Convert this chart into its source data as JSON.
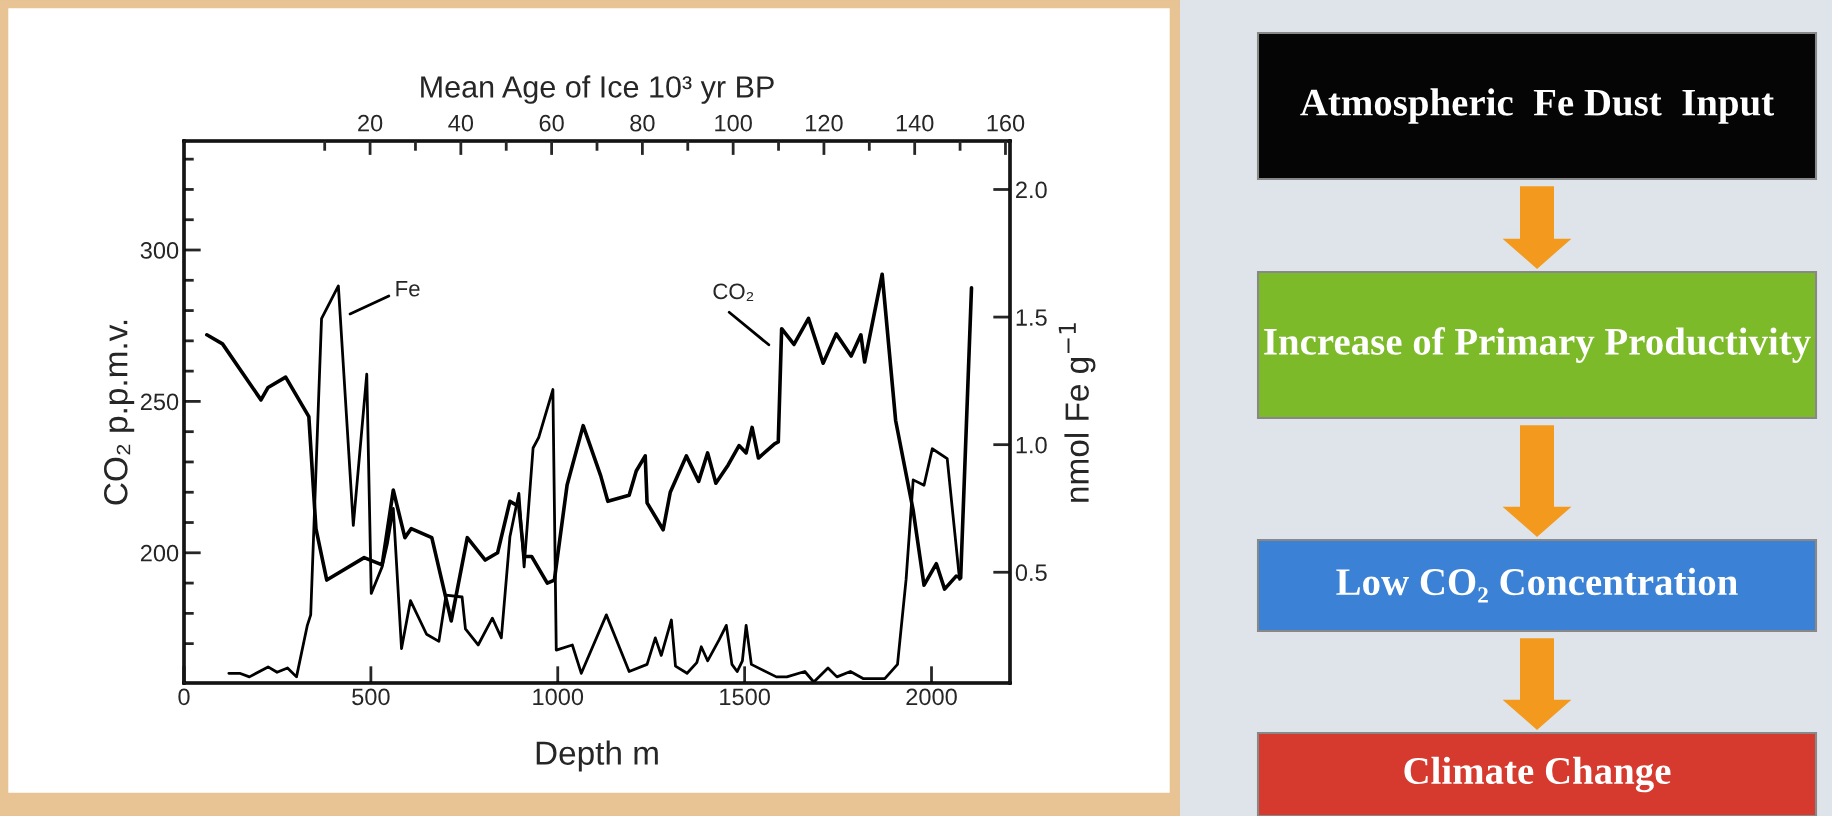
{
  "chart_data": [
    {
      "type": "line",
      "xlabel": "Depth m",
      "ylabel": "CO₂ p.p.m.v.",
      "y2label": "nmol Fe g$^{−1}$",
      "x2label": "Mean Age of Ice 10³ yr BP",
      "xlim": [
        0,
        2210
      ],
      "xticks": [
        0,
        500,
        1000,
        1500,
        2000
      ],
      "ylim": [
        157,
        336
      ],
      "yticks": [
        {
          "value": 170,
          "label": null
        },
        {
          "value": 180,
          "label": null
        },
        {
          "value": 190,
          "label": null
        },
        200,
        {
          "value": 210,
          "label": null
        },
        {
          "value": 220,
          "label": null
        },
        {
          "value": 230,
          "label": null
        },
        {
          "value": 240,
          "label": null
        },
        250,
        {
          "value": 260,
          "label": null
        },
        {
          "value": 270,
          "label": null
        },
        {
          "value": 280,
          "label": null
        },
        {
          "value": 290,
          "label": null
        },
        300,
        {
          "value": 310,
          "label": null
        },
        {
          "value": 320,
          "label": null
        },
        {
          "value": 330,
          "label": null
        }
      ],
      "y2lim": [
        0.066,
        2.19
      ],
      "y2ticks": [
        0.5,
        {
          "value": 1.0,
          "label": "1.0"
        },
        1.5,
        {
          "value": 2.0,
          "label": "2.0"
        }
      ],
      "x2lim": [
        -21,
        161
      ],
      "x2ticks": [
        {
          "value": 10,
          "label": null
        },
        20,
        {
          "value": 30,
          "label": null
        },
        40,
        {
          "value": 50,
          "label": null
        },
        60,
        {
          "value": 70,
          "label": null
        },
        80,
        {
          "value": 90,
          "label": null
        },
        100,
        {
          "value": 110,
          "label": null
        },
        120,
        {
          "value": 130,
          "label": null
        },
        140,
        {
          "value": 150,
          "label": null
        },
        160
      ],
      "series": [
        {
          "color": "#000000",
          "x": [
            61,
            103,
            206,
            225,
            272,
            334,
            353,
            382,
            482,
            530,
            560,
            591,
            608,
            663,
            715,
            758,
            806,
            839,
            872,
            896,
            910,
            930,
            972,
            991,
            1025,
            1068,
            1115,
            1134,
            1191,
            1210,
            1234,
            1239,
            1282,
            1301,
            1344,
            1377,
            1401,
            1423,
            1456,
            1485,
            1504,
            1520,
            1537,
            1580,
            1590,
            1599,
            1632,
            1671,
            1710,
            1745,
            1785,
            1811,
            1821,
            1868,
            1904,
            1951,
            1980,
            2013,
            2035,
            2066,
            2078,
            2107
          ],
          "values": [
            272,
            269,
            250.5,
            254.6,
            258,
            245,
            208,
            191,
            198.4,
            196,
            220.7,
            205,
            208,
            205,
            177.5,
            205,
            197.6,
            200,
            217,
            215.3,
            198.8,
            198.8,
            190,
            191,
            222.4,
            242,
            225.4,
            217,
            219,
            227,
            232,
            216.5,
            207.6,
            220,
            232,
            223.6,
            233,
            223,
            229,
            235.4,
            233,
            241.4,
            231.3,
            236,
            236.6,
            274,
            268.8,
            277.4,
            262.6,
            272.3,
            265,
            272,
            263,
            292,
            243.7,
            214,
            189.3,
            196.4,
            188,
            192.3,
            191.7,
            287.5
          ]
        },
        {
          "color": "#000000",
          "axis": "y2",
          "x": [
            120,
            149,
            175,
            225,
            249,
            277,
            301,
            330,
            339,
            368,
            413,
            453,
            489,
            501,
            530,
            544,
            560,
            582,
            606,
            649,
            682,
            701,
            744,
            753,
            787,
            825,
            849,
            872,
            896,
            910,
            934,
            949,
            987,
            996,
            1039,
            1063,
            1130,
            1191,
            1239,
            1261,
            1277,
            1304,
            1315,
            1346,
            1372,
            1384,
            1401,
            1432,
            1451,
            1466,
            1480,
            1494,
            1504,
            1518,
            1585,
            1613,
            1661,
            1685,
            1723,
            1747,
            1783,
            1818,
            1875,
            1909,
            1932,
            1951,
            1980,
            2002,
            2042,
            2075
          ],
          "values": [
            0.104,
            0.104,
            0.09,
            0.129,
            0.108,
            0.125,
            0.09,
            0.292,
            0.333,
            1.494,
            1.622,
            0.684,
            1.276,
            0.417,
            0.521,
            0.611,
            0.75,
            0.201,
            0.389,
            0.257,
            0.229,
            0.41,
            0.403,
            0.278,
            0.215,
            0.32,
            0.243,
            0.639,
            0.809,
            0.521,
            0.987,
            1.028,
            1.216,
            0.195,
            0.215,
            0.104,
            0.333,
            0.111,
            0.139,
            0.243,
            0.174,
            0.313,
            0.132,
            0.104,
            0.146,
            0.208,
            0.153,
            0.236,
            0.292,
            0.139,
            0.111,
            0.153,
            0.292,
            0.139,
            0.09,
            0.09,
            0.111,
            0.07,
            0.125,
            0.09,
            0.111,
            0.083,
            0.083,
            0.139,
            0.472,
            0.862,
            0.841,
            0.984,
            0.945,
            0.472
          ]
        }
      ],
      "annotations": [
        "Fe",
        "CO₂"
      ]
    },
    {
      "type": "other",
      "annotations": [
        "Atmospheric  Fe Dust  Input",
        "Increase of Primary Productivity",
        "Low CO₂ Concentration",
        "Climate Change"
      ]
    }
  ]
}
